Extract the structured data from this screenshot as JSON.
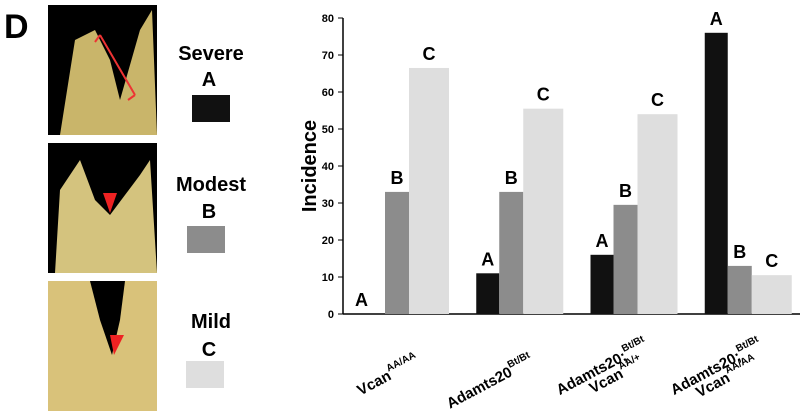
{
  "panel_label": "D",
  "chart_data": {
    "type": "bar",
    "y_label": "Incidence",
    "categories": [
      [
        {
          "text": "Vcan",
          "sup": "AA/AA"
        }
      ],
      [
        {
          "text": "Adamts20",
          "sup": "Bt/Bt"
        }
      ],
      [
        {
          "text": "Adamts20;",
          "sup": "Bt/Bt"
        },
        {
          "text": "Vcan",
          "sup": "AA/+"
        }
      ],
      [
        {
          "text": "Adamts20;",
          "sup": "Bt/Bt"
        },
        {
          "text": "Vcan",
          "sup": "AA/AA"
        }
      ]
    ],
    "series": [
      {
        "name": "Severe",
        "letter": "A",
        "color": "#111111",
        "values": [
          0,
          11,
          16,
          76
        ]
      },
      {
        "name": "Modest",
        "letter": "B",
        "color": "#8c8c8c",
        "values": [
          33,
          33,
          29.5,
          13
        ]
      },
      {
        "name": "Mild",
        "letter": "C",
        "color": "#dedede",
        "values": [
          66.5,
          55.5,
          54,
          10.5
        ]
      }
    ],
    "ylim": [
      0,
      80
    ],
    "yticks": [
      0,
      10,
      20,
      30,
      40,
      50,
      60,
      70,
      80
    ],
    "grid": false
  }
}
